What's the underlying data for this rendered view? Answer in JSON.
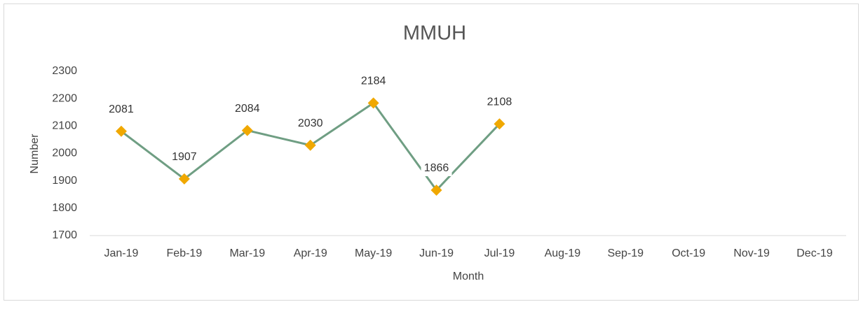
{
  "chart_data": {
    "type": "line",
    "title": "MMUH",
    "x_label": "Month",
    "y_label": "Number",
    "categories": [
      "Jan-19",
      "Feb-19",
      "Mar-19",
      "Apr-19",
      "May-19",
      "Jun-19",
      "Jul-19",
      "Aug-19",
      "Sep-19",
      "Oct-19",
      "Nov-19",
      "Dec-19"
    ],
    "series": [
      {
        "name": "MMUH",
        "color": "#6f9e83",
        "marker_color": "#f0a800",
        "values": [
          2081,
          1907,
          2084,
          2030,
          2184,
          1866,
          2108,
          null,
          null,
          null,
          null,
          null
        ]
      }
    ],
    "ylim": [
      1700,
      2300
    ],
    "yticks": [
      1700,
      1800,
      1900,
      2000,
      2100,
      2200,
      2300
    ],
    "grid": false
  }
}
